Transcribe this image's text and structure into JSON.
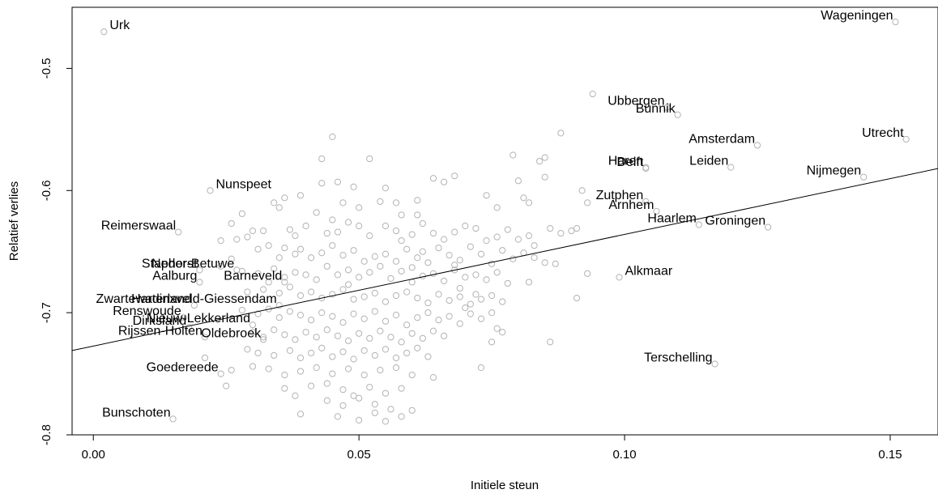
{
  "chart_data": {
    "type": "scatter",
    "xlabel": "Initiele steun",
    "ylabel": "Relatief verlies",
    "xlim": [
      -0.004,
      0.159
    ],
    "ylim": [
      -0.8,
      -0.45
    ],
    "xticks": [
      {
        "value": 0.0,
        "label": "0.00"
      },
      {
        "value": 0.05,
        "label": "0.05"
      },
      {
        "value": 0.1,
        "label": "0.10"
      },
      {
        "value": 0.15,
        "label": "0.15"
      }
    ],
    "yticks": [
      {
        "value": -0.5,
        "label": "-0.5"
      },
      {
        "value": -0.6,
        "label": "-0.6"
      },
      {
        "value": -0.7,
        "label": "-0.7"
      },
      {
        "value": -0.8,
        "label": "-0.8"
      }
    ],
    "point_color": "#b3b3b3",
    "line_color": "#000000",
    "trend_line": {
      "x": [
        -0.004,
        0.159
      ],
      "y": [
        -0.731,
        -0.582
      ]
    },
    "labeled_points": [
      {
        "label": "Urk",
        "x": 0.002,
        "y": -0.47
      },
      {
        "label": "Wageningen",
        "x": 0.151,
        "y": -0.462
      },
      {
        "label": "Ubbergen",
        "x": 0.108,
        "y": -0.532
      },
      {
        "label": "Bunnik",
        "x": 0.11,
        "y": -0.538
      },
      {
        "label": "Utrecht",
        "x": 0.153,
        "y": -0.558
      },
      {
        "label": "Haren",
        "x": 0.104,
        "y": -0.581
      },
      {
        "label": "Amsterdam",
        "x": 0.125,
        "y": -0.563
      },
      {
        "label": "Delft",
        "x": 0.104,
        "y": -0.582
      },
      {
        "label": "Leiden",
        "x": 0.12,
        "y": -0.581
      },
      {
        "label": "Nijmegen",
        "x": 0.145,
        "y": -0.589
      },
      {
        "label": "Nunspeet",
        "x": 0.022,
        "y": -0.6
      },
      {
        "label": "Zutphen",
        "x": 0.104,
        "y": -0.609
      },
      {
        "label": "Arnhem",
        "x": 0.106,
        "y": -0.617
      },
      {
        "label": "Haarlem",
        "x": 0.114,
        "y": -0.628
      },
      {
        "label": "Groningen",
        "x": 0.127,
        "y": -0.63
      },
      {
        "label": "Reimerswaal",
        "x": 0.016,
        "y": -0.634
      },
      {
        "label": "Staphorst",
        "x": 0.02,
        "y": -0.665
      },
      {
        "label": "Neder-Betuwe",
        "x": 0.027,
        "y": -0.665
      },
      {
        "label": "Aalburg",
        "x": 0.02,
        "y": -0.675
      },
      {
        "label": "Barneveld",
        "x": 0.036,
        "y": -0.675
      },
      {
        "label": "Alkmaar",
        "x": 0.099,
        "y": -0.671
      },
      {
        "label": "Zwartewaterland",
        "x": 0.019,
        "y": -0.694
      },
      {
        "label": "Hardinxveld-Giessendam",
        "x": 0.035,
        "y": -0.694
      },
      {
        "label": "Renswoude",
        "x": 0.017,
        "y": -0.704
      },
      {
        "label": "Dirksland",
        "x": 0.018,
        "y": -0.712
      },
      {
        "label": "Nieuw-Lekkerland",
        "x": 0.03,
        "y": -0.71
      },
      {
        "label": "Rijssen-Holten",
        "x": 0.021,
        "y": -0.72
      },
      {
        "label": "Oldebroek",
        "x": 0.032,
        "y": -0.722
      },
      {
        "label": "Terschelling",
        "x": 0.117,
        "y": -0.742
      },
      {
        "label": "Goedereede",
        "x": 0.024,
        "y": -0.75
      },
      {
        "label": "Bunschoten",
        "x": 0.015,
        "y": -0.787
      }
    ],
    "points": [
      [
        0.045,
        -0.556
      ],
      [
        0.052,
        -0.574
      ],
      [
        0.043,
        -0.574
      ],
      [
        0.094,
        -0.521
      ],
      [
        0.088,
        -0.553
      ],
      [
        0.079,
        -0.571
      ],
      [
        0.085,
        -0.573
      ],
      [
        0.084,
        -0.576
      ],
      [
        0.046,
        -0.593
      ],
      [
        0.049,
        -0.597
      ],
      [
        0.055,
        -0.598
      ],
      [
        0.043,
        -0.594
      ],
      [
        0.068,
        -0.588
      ],
      [
        0.064,
        -0.59
      ],
      [
        0.066,
        -0.593
      ],
      [
        0.08,
        -0.592
      ],
      [
        0.085,
        -0.589
      ],
      [
        0.036,
        -0.606
      ],
      [
        0.039,
        -0.604
      ],
      [
        0.047,
        -0.61
      ],
      [
        0.054,
        -0.609
      ],
      [
        0.057,
        -0.61
      ],
      [
        0.061,
        -0.608
      ],
      [
        0.074,
        -0.604
      ],
      [
        0.076,
        -0.614
      ],
      [
        0.081,
        -0.606
      ],
      [
        0.082,
        -0.61
      ],
      [
        0.092,
        -0.6
      ],
      [
        0.093,
        -0.61
      ],
      [
        0.026,
        -0.627
      ],
      [
        0.028,
        -0.619
      ],
      [
        0.03,
        -0.633
      ],
      [
        0.032,
        -0.633
      ],
      [
        0.034,
        -0.61
      ],
      [
        0.035,
        -0.614
      ],
      [
        0.037,
        -0.632
      ],
      [
        0.038,
        -0.637
      ],
      [
        0.04,
        -0.629
      ],
      [
        0.042,
        -0.618
      ],
      [
        0.044,
        -0.635
      ],
      [
        0.046,
        -0.634
      ],
      [
        0.048,
        -0.626
      ],
      [
        0.05,
        -0.629
      ],
      [
        0.052,
        -0.637
      ],
      [
        0.055,
        -0.629
      ],
      [
        0.057,
        -0.633
      ],
      [
        0.058,
        -0.641
      ],
      [
        0.06,
        -0.636
      ],
      [
        0.062,
        -0.627
      ],
      [
        0.064,
        -0.635
      ],
      [
        0.066,
        -0.64
      ],
      [
        0.068,
        -0.634
      ],
      [
        0.07,
        -0.629
      ],
      [
        0.072,
        -0.631
      ],
      [
        0.074,
        -0.641
      ],
      [
        0.076,
        -0.638
      ],
      [
        0.078,
        -0.632
      ],
      [
        0.08,
        -0.64
      ],
      [
        0.082,
        -0.637
      ],
      [
        0.086,
        -0.631
      ],
      [
        0.088,
        -0.635
      ],
      [
        0.09,
        -0.633
      ],
      [
        0.091,
        -0.631
      ],
      [
        0.024,
        -0.641
      ],
      [
        0.027,
        -0.64
      ],
      [
        0.029,
        -0.638
      ],
      [
        0.033,
        -0.645
      ],
      [
        0.036,
        -0.647
      ],
      [
        0.038,
        -0.652
      ],
      [
        0.039,
        -0.648
      ],
      [
        0.041,
        -0.655
      ],
      [
        0.043,
        -0.651
      ],
      [
        0.045,
        -0.645
      ],
      [
        0.047,
        -0.653
      ],
      [
        0.049,
        -0.649
      ],
      [
        0.051,
        -0.658
      ],
      [
        0.053,
        -0.654
      ],
      [
        0.055,
        -0.652
      ],
      [
        0.057,
        -0.658
      ],
      [
        0.059,
        -0.648
      ],
      [
        0.061,
        -0.655
      ],
      [
        0.063,
        -0.659
      ],
      [
        0.065,
        -0.647
      ],
      [
        0.067,
        -0.653
      ],
      [
        0.069,
        -0.657
      ],
      [
        0.071,
        -0.646
      ],
      [
        0.073,
        -0.652
      ],
      [
        0.075,
        -0.66
      ],
      [
        0.077,
        -0.649
      ],
      [
        0.079,
        -0.656
      ],
      [
        0.081,
        -0.651
      ],
      [
        0.083,
        -0.645
      ],
      [
        0.087,
        -0.66
      ],
      [
        0.024,
        -0.662
      ],
      [
        0.028,
        -0.666
      ],
      [
        0.031,
        -0.668
      ],
      [
        0.034,
        -0.664
      ],
      [
        0.036,
        -0.671
      ],
      [
        0.038,
        -0.667
      ],
      [
        0.04,
        -0.669
      ],
      [
        0.042,
        -0.673
      ],
      [
        0.044,
        -0.662
      ],
      [
        0.046,
        -0.669
      ],
      [
        0.048,
        -0.665
      ],
      [
        0.05,
        -0.671
      ],
      [
        0.052,
        -0.667
      ],
      [
        0.054,
        -0.662
      ],
      [
        0.056,
        -0.672
      ],
      [
        0.058,
        -0.666
      ],
      [
        0.06,
        -0.663
      ],
      [
        0.062,
        -0.67
      ],
      [
        0.064,
        -0.668
      ],
      [
        0.066,
        -0.674
      ],
      [
        0.068,
        -0.665
      ],
      [
        0.07,
        -0.671
      ],
      [
        0.072,
        -0.669
      ],
      [
        0.074,
        -0.673
      ],
      [
        0.076,
        -0.667
      ],
      [
        0.078,
        -0.676
      ],
      [
        0.082,
        -0.675
      ],
      [
        0.093,
        -0.668
      ],
      [
        0.029,
        -0.683
      ],
      [
        0.032,
        -0.681
      ],
      [
        0.035,
        -0.684
      ],
      [
        0.037,
        -0.679
      ],
      [
        0.039,
        -0.686
      ],
      [
        0.041,
        -0.683
      ],
      [
        0.043,
        -0.688
      ],
      [
        0.045,
        -0.685
      ],
      [
        0.047,
        -0.681
      ],
      [
        0.049,
        -0.689
      ],
      [
        0.051,
        -0.687
      ],
      [
        0.053,
        -0.684
      ],
      [
        0.055,
        -0.691
      ],
      [
        0.057,
        -0.686
      ],
      [
        0.059,
        -0.683
      ],
      [
        0.061,
        -0.688
      ],
      [
        0.063,
        -0.692
      ],
      [
        0.065,
        -0.685
      ],
      [
        0.067,
        -0.69
      ],
      [
        0.069,
        -0.687
      ],
      [
        0.071,
        -0.693
      ],
      [
        0.073,
        -0.689
      ],
      [
        0.075,
        -0.686
      ],
      [
        0.077,
        -0.691
      ],
      [
        0.091,
        -0.688
      ],
      [
        0.028,
        -0.698
      ],
      [
        0.031,
        -0.701
      ],
      [
        0.033,
        -0.697
      ],
      [
        0.035,
        -0.704
      ],
      [
        0.037,
        -0.699
      ],
      [
        0.039,
        -0.702
      ],
      [
        0.041,
        -0.706
      ],
      [
        0.043,
        -0.7
      ],
      [
        0.045,
        -0.703
      ],
      [
        0.047,
        -0.708
      ],
      [
        0.049,
        -0.701
      ],
      [
        0.051,
        -0.705
      ],
      [
        0.053,
        -0.699
      ],
      [
        0.055,
        -0.707
      ],
      [
        0.057,
        -0.702
      ],
      [
        0.059,
        -0.71
      ],
      [
        0.061,
        -0.704
      ],
      [
        0.063,
        -0.7
      ],
      [
        0.065,
        -0.706
      ],
      [
        0.067,
        -0.703
      ],
      [
        0.069,
        -0.709
      ],
      [
        0.071,
        -0.701
      ],
      [
        0.073,
        -0.705
      ],
      [
        0.075,
        -0.7
      ],
      [
        0.03,
        -0.716
      ],
      [
        0.032,
        -0.72
      ],
      [
        0.034,
        -0.714
      ],
      [
        0.036,
        -0.718
      ],
      [
        0.038,
        -0.722
      ],
      [
        0.04,
        -0.716
      ],
      [
        0.042,
        -0.72
      ],
      [
        0.044,
        -0.714
      ],
      [
        0.046,
        -0.719
      ],
      [
        0.048,
        -0.723
      ],
      [
        0.05,
        -0.717
      ],
      [
        0.052,
        -0.721
      ],
      [
        0.054,
        -0.715
      ],
      [
        0.056,
        -0.72
      ],
      [
        0.058,
        -0.724
      ],
      [
        0.06,
        -0.717
      ],
      [
        0.062,
        -0.721
      ],
      [
        0.064,
        -0.715
      ],
      [
        0.066,
        -0.719
      ],
      [
        0.076,
        -0.713
      ],
      [
        0.077,
        -0.716
      ],
      [
        0.075,
        -0.724
      ],
      [
        0.086,
        -0.724
      ],
      [
        0.029,
        -0.73
      ],
      [
        0.031,
        -0.733
      ],
      [
        0.034,
        -0.735
      ],
      [
        0.037,
        -0.731
      ],
      [
        0.039,
        -0.737
      ],
      [
        0.041,
        -0.733
      ],
      [
        0.043,
        -0.729
      ],
      [
        0.045,
        -0.736
      ],
      [
        0.047,
        -0.732
      ],
      [
        0.049,
        -0.738
      ],
      [
        0.051,
        -0.731
      ],
      [
        0.053,
        -0.735
      ],
      [
        0.055,
        -0.73
      ],
      [
        0.057,
        -0.737
      ],
      [
        0.059,
        -0.733
      ],
      [
        0.061,
        -0.729
      ],
      [
        0.063,
        -0.736
      ],
      [
        0.073,
        -0.745
      ],
      [
        0.021,
        -0.737
      ],
      [
        0.026,
        -0.747
      ],
      [
        0.03,
        -0.744
      ],
      [
        0.033,
        -0.746
      ],
      [
        0.036,
        -0.751
      ],
      [
        0.039,
        -0.748
      ],
      [
        0.042,
        -0.745
      ],
      [
        0.045,
        -0.75
      ],
      [
        0.048,
        -0.746
      ],
      [
        0.051,
        -0.751
      ],
      [
        0.054,
        -0.747
      ],
      [
        0.057,
        -0.745
      ],
      [
        0.06,
        -0.751
      ],
      [
        0.064,
        -0.753
      ],
      [
        0.036,
        -0.762
      ],
      [
        0.038,
        -0.768
      ],
      [
        0.041,
        -0.76
      ],
      [
        0.044,
        -0.758
      ],
      [
        0.047,
        -0.763
      ],
      [
        0.049,
        -0.768
      ],
      [
        0.052,
        -0.761
      ],
      [
        0.055,
        -0.766
      ],
      [
        0.058,
        -0.762
      ],
      [
        0.025,
        -0.76
      ],
      [
        0.044,
        -0.772
      ],
      [
        0.047,
        -0.776
      ],
      [
        0.05,
        -0.77
      ],
      [
        0.053,
        -0.775
      ],
      [
        0.056,
        -0.779
      ],
      [
        0.039,
        -0.783
      ],
      [
        0.05,
        -0.788
      ],
      [
        0.053,
        -0.782
      ],
      [
        0.055,
        -0.789
      ],
      [
        0.058,
        -0.785
      ],
      [
        0.06,
        -0.78
      ],
      [
        0.046,
        -0.785
      ],
      [
        0.068,
        -0.661
      ],
      [
        0.07,
        -0.696
      ],
      [
        0.072,
        -0.685
      ],
      [
        0.083,
        -0.655
      ],
      [
        0.085,
        -0.659
      ],
      [
        0.062,
        -0.65
      ],
      [
        0.061,
        -0.62
      ],
      [
        0.058,
        -0.62
      ],
      [
        0.045,
        -0.624
      ],
      [
        0.05,
        -0.614
      ],
      [
        0.035,
        -0.655
      ],
      [
        0.031,
        -0.648
      ],
      [
        0.026,
        -0.656
      ],
      [
        0.033,
        -0.675
      ],
      [
        0.048,
        -0.677
      ],
      [
        0.06,
        -0.675
      ],
      [
        0.069,
        -0.68
      ]
    ]
  }
}
